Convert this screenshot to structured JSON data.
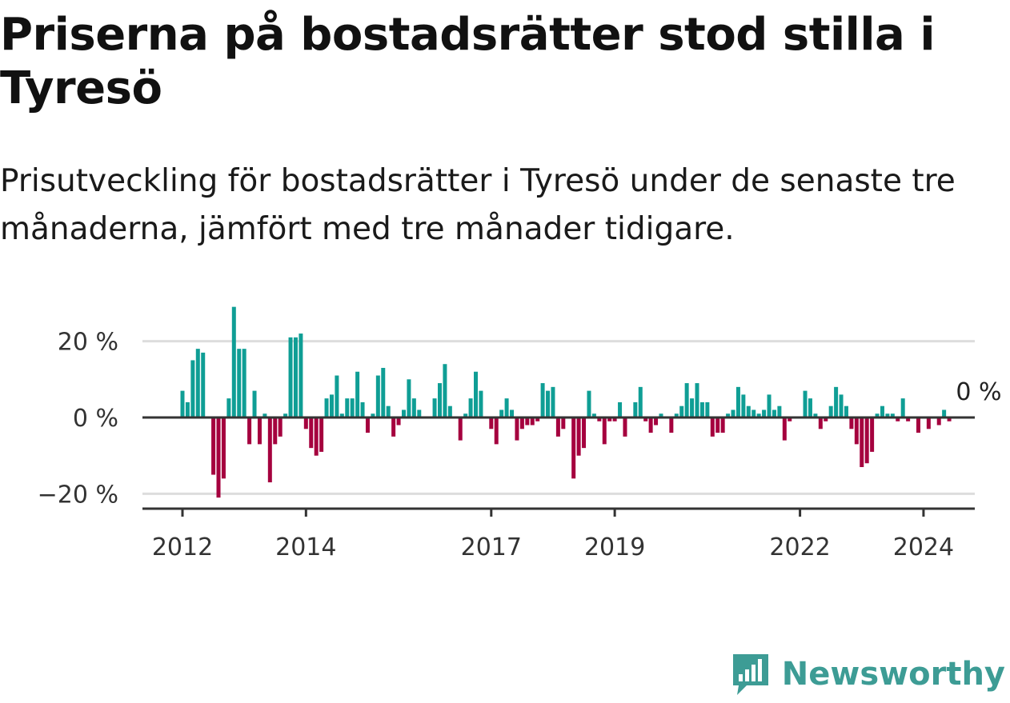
{
  "title": "Priserna på bostadsrätter stod stilla i Tyresö",
  "subtitle": "Prisutveckling för bostadsrätter i Tyresö under de senaste tre månaderna, jämfört med tre månader tidigare.",
  "brand": "Newsworthy",
  "colors": {
    "positive": "#0f9e95",
    "negative": "#a5003e",
    "zero_line": "#333333",
    "grid": "#dddddd",
    "brand": "#3d9c95"
  },
  "chart_data": {
    "type": "bar",
    "x_start": "2012-01",
    "frequency": "monthly",
    "unit": "%",
    "ylim": [
      -24,
      31
    ],
    "y_ticks": [
      20,
      0,
      -20
    ],
    "y_tick_labels": [
      "20 %",
      "0 %",
      "−20 %"
    ],
    "x_ticks": [
      "2012",
      "2014",
      "2017",
      "2019",
      "2022",
      "2024"
    ],
    "grid": true,
    "end_label": "0 %",
    "values": [
      7,
      4,
      15,
      18,
      17,
      0,
      -15,
      -21,
      -16,
      5,
      29,
      18,
      18,
      -7,
      7,
      -7,
      1,
      -17,
      -7,
      -5,
      1,
      21,
      21,
      22,
      -3,
      -8,
      -10,
      -9,
      5,
      6,
      11,
      1,
      5,
      5,
      12,
      4,
      -4,
      1,
      11,
      13,
      3,
      -5,
      -2,
      2,
      10,
      5,
      2,
      0,
      0,
      5,
      9,
      14,
      3,
      0,
      -6,
      1,
      5,
      12,
      7,
      0,
      -3,
      -7,
      2,
      5,
      2,
      -6,
      -3,
      -2,
      -2,
      -1,
      9,
      7,
      8,
      -5,
      -3,
      0,
      -16,
      -10,
      -8,
      7,
      1,
      -1,
      -7,
      -1,
      -1,
      4,
      -5,
      0,
      4,
      8,
      -1,
      -4,
      -2,
      1,
      0,
      -4,
      1,
      3,
      9,
      5,
      9,
      4,
      4,
      -5,
      -4,
      -4,
      1,
      2,
      8,
      6,
      3,
      2,
      1,
      2,
      6,
      2,
      3,
      -6,
      -1,
      0,
      0,
      7,
      5,
      1,
      -3,
      -1,
      3,
      8,
      6,
      3,
      -3,
      -7,
      -13,
      -12,
      -9,
      1,
      3,
      1,
      1,
      -1,
      5,
      -1,
      0,
      -4,
      0,
      -3,
      0,
      -2,
      2,
      -1,
      0,
      0
    ]
  }
}
